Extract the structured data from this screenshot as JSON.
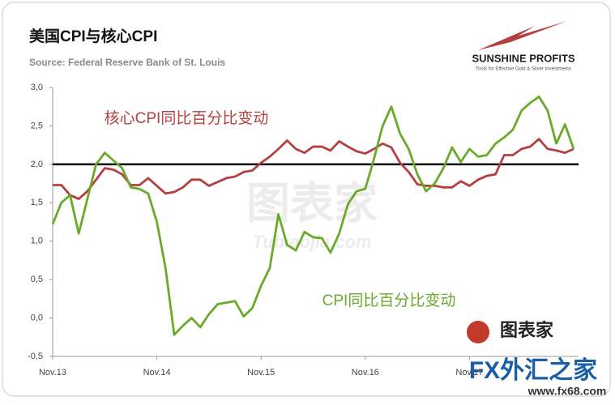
{
  "chart_data": {
    "type": "line",
    "title": "美国CPI与核心CPI",
    "subtitle": "Source: Federal Reserve Bank of St. Louis",
    "logo": {
      "name": "SUNSHINE PROFITS",
      "tagline": "Tools for Effective Gold & Silver Investments"
    },
    "watermarks": [
      "图表家",
      "Tubiaojia.com",
      "FX外汇之家",
      "www.fx68.com"
    ],
    "categories": [
      "Nov.13",
      null,
      null,
      null,
      null,
      null,
      null,
      null,
      null,
      null,
      null,
      null,
      "Nov.14",
      null,
      null,
      null,
      null,
      null,
      null,
      null,
      null,
      null,
      null,
      null,
      "Nov.15",
      null,
      null,
      null,
      null,
      null,
      null,
      null,
      null,
      null,
      null,
      null,
      "Nov.16",
      null,
      null,
      null,
      null,
      null,
      null,
      null,
      null,
      null,
      null,
      null,
      "Nov.17",
      null,
      null,
      null,
      null,
      null,
      null,
      null,
      null,
      null,
      null,
      null,
      null
    ],
    "series": [
      {
        "name": "核心CPI同比百分比变动",
        "color": "#b5403f",
        "values": [
          1.73,
          1.73,
          1.6,
          1.55,
          1.65,
          1.8,
          1.95,
          1.93,
          1.87,
          1.73,
          1.73,
          1.82,
          1.72,
          1.62,
          1.64,
          1.7,
          1.8,
          1.8,
          1.72,
          1.77,
          1.82,
          1.84,
          1.9,
          1.92,
          2.02,
          2.1,
          2.2,
          2.31,
          2.2,
          2.15,
          2.23,
          2.23,
          2.18,
          2.3,
          2.23,
          2.17,
          2.14,
          2.2,
          2.27,
          2.22,
          2.02,
          1.9,
          1.74,
          1.72,
          1.72,
          1.7,
          1.7,
          1.78,
          1.72,
          1.8,
          1.85,
          1.87,
          2.12,
          2.12,
          2.2,
          2.23,
          2.33,
          2.2,
          2.18,
          2.15,
          2.2
        ]
      },
      {
        "name": "CPI同比百分比变动",
        "color": "#6aaa2a",
        "values": [
          1.22,
          1.5,
          1.6,
          1.1,
          1.55,
          2.0,
          2.15,
          2.05,
          1.95,
          1.7,
          1.68,
          1.62,
          1.25,
          0.65,
          -0.22,
          -0.1,
          0.0,
          -0.12,
          0.05,
          0.18,
          0.2,
          0.22,
          0.02,
          0.13,
          0.42,
          0.65,
          1.35,
          0.95,
          0.88,
          1.12,
          1.05,
          1.04,
          0.85,
          1.1,
          1.48,
          1.65,
          1.68,
          2.07,
          2.5,
          2.75,
          2.4,
          2.2,
          1.87,
          1.65,
          1.75,
          1.95,
          2.22,
          2.03,
          2.2,
          2.1,
          2.12,
          2.27,
          2.35,
          2.45,
          2.7,
          2.8,
          2.88,
          2.7,
          2.27,
          2.52,
          2.2
        ]
      }
    ],
    "reference_line": {
      "value": 2,
      "color": "#000000"
    },
    "ylim": [
      -0.5,
      3
    ],
    "yticks": [
      {
        "value": -0.5,
        "label": "-0,5"
      },
      {
        "value": 0,
        "label": "0,0"
      },
      {
        "value": 0.5,
        "label": "0,5"
      },
      {
        "value": 1,
        "label": "1,0"
      },
      {
        "value": 1.5,
        "label": "1,5"
      },
      {
        "value": 2,
        "label": "2,0"
      },
      {
        "value": 2.5,
        "label": "2,5"
      },
      {
        "value": 3,
        "label": "3,0"
      }
    ],
    "grid": false
  }
}
